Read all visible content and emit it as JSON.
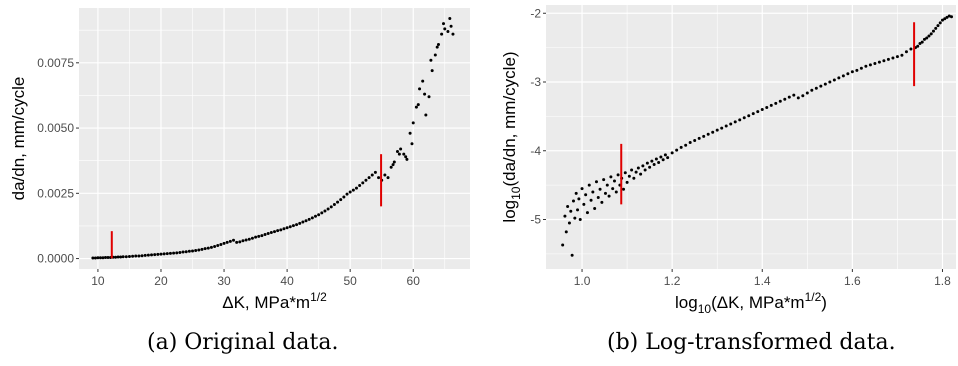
{
  "chart_data": [
    {
      "type": "scatter",
      "xlabel": "ΔK, MPa*m^1/2",
      "ylabel": "da/dn, mm/cycle",
      "xlim": [
        7,
        69
      ],
      "ylim": [
        -0.0004,
        0.0096
      ],
      "x_ticks": [
        10,
        20,
        30,
        40,
        50,
        60
      ],
      "y_ticks": [
        0,
        0.0025,
        0.005,
        0.0075
      ],
      "x_tick_labels": [
        "10",
        "20",
        "30",
        "40",
        "50",
        "60"
      ],
      "y_tick_labels": [
        "0.0000",
        "0.0025",
        "0.0050",
        "0.0075"
      ],
      "background": "#ebebeb",
      "grid": true,
      "point_color": "#000000",
      "marker_color": "#e00000",
      "vertical_markers": [
        {
          "x": 12.2,
          "y": [
            1e-05,
            0.00105
          ]
        },
        {
          "x": 54.9,
          "y": [
            0.002,
            0.004
          ]
        }
      ],
      "points": [
        [
          9.2,
          2e-05
        ],
        [
          9.6,
          2e-05
        ],
        [
          10.0,
          3e-05
        ],
        [
          10.4,
          3e-05
        ],
        [
          10.8,
          3e-05
        ],
        [
          11.2,
          4e-05
        ],
        [
          11.6,
          4e-05
        ],
        [
          12.0,
          4e-05
        ],
        [
          12.4,
          5e-05
        ],
        [
          12.8,
          5e-05
        ],
        [
          13.2,
          6e-05
        ],
        [
          13.6,
          6e-05
        ],
        [
          14.0,
          7e-05
        ],
        [
          14.5,
          7e-05
        ],
        [
          15.0,
          8e-05
        ],
        [
          15.5,
          9e-05
        ],
        [
          16.0,
          0.0001
        ],
        [
          16.5,
          0.0001
        ],
        [
          17.0,
          0.00011
        ],
        [
          17.5,
          0.00012
        ],
        [
          18.0,
          0.00013
        ],
        [
          18.5,
          0.00014
        ],
        [
          19.0,
          0.00015
        ],
        [
          19.5,
          0.00016
        ],
        [
          20.0,
          0.00017
        ],
        [
          20.5,
          0.00018
        ],
        [
          21.0,
          0.00019
        ],
        [
          21.5,
          0.0002
        ],
        [
          22.0,
          0.00021
        ],
        [
          22.5,
          0.00022
        ],
        [
          23.0,
          0.00023
        ],
        [
          23.5,
          0.00025
        ],
        [
          24.0,
          0.00026
        ],
        [
          24.5,
          0.00028
        ],
        [
          25.0,
          0.00029
        ],
        [
          25.5,
          0.00031
        ],
        [
          26.0,
          0.00033
        ],
        [
          26.5,
          0.00035
        ],
        [
          27.0,
          0.00038
        ],
        [
          27.5,
          0.0004
        ],
        [
          28.0,
          0.00043
        ],
        [
          28.5,
          0.00046
        ],
        [
          29.0,
          0.0005
        ],
        [
          29.5,
          0.00054
        ],
        [
          30.0,
          0.00058
        ],
        [
          30.5,
          0.00062
        ],
        [
          31.0,
          0.00066
        ],
        [
          31.5,
          0.0007
        ],
        [
          32.0,
          0.00062
        ],
        [
          32.5,
          0.00064
        ],
        [
          33.0,
          0.00068
        ],
        [
          33.5,
          0.00071
        ],
        [
          34.0,
          0.00074
        ],
        [
          34.5,
          0.00078
        ],
        [
          35.0,
          0.00082
        ],
        [
          35.5,
          0.00085
        ],
        [
          36.0,
          0.00088
        ],
        [
          36.5,
          0.00092
        ],
        [
          37.0,
          0.00096
        ],
        [
          37.5,
          0.001
        ],
        [
          38.0,
          0.00103
        ],
        [
          38.5,
          0.00107
        ],
        [
          39.0,
          0.0011
        ],
        [
          39.5,
          0.00114
        ],
        [
          40.0,
          0.00118
        ],
        [
          40.5,
          0.00122
        ],
        [
          41.0,
          0.00126
        ],
        [
          41.5,
          0.0013
        ],
        [
          42.0,
          0.00135
        ],
        [
          42.5,
          0.0014
        ],
        [
          43.0,
          0.00145
        ],
        [
          43.5,
          0.0015
        ],
        [
          44.0,
          0.00156
        ],
        [
          44.5,
          0.00162
        ],
        [
          45.0,
          0.00168
        ],
        [
          45.5,
          0.00175
        ],
        [
          46.0,
          0.00182
        ],
        [
          46.5,
          0.0019
        ],
        [
          47.0,
          0.00198
        ],
        [
          47.5,
          0.00207
        ],
        [
          48.0,
          0.00216
        ],
        [
          48.5,
          0.00226
        ],
        [
          49.0,
          0.00236
        ],
        [
          49.5,
          0.00247
        ],
        [
          50.0,
          0.00255
        ],
        [
          50.5,
          0.00262
        ],
        [
          51.0,
          0.0027
        ],
        [
          51.5,
          0.0028
        ],
        [
          52.0,
          0.0029
        ],
        [
          52.5,
          0.003
        ],
        [
          53.0,
          0.0031
        ],
        [
          53.5,
          0.0032
        ],
        [
          54.0,
          0.0033
        ],
        [
          54.5,
          0.0031
        ],
        [
          55.0,
          0.003
        ],
        [
          55.5,
          0.0032
        ],
        [
          56.0,
          0.0031
        ],
        [
          56.5,
          0.0035
        ],
        [
          57.0,
          0.0037
        ],
        [
          57.5,
          0.0041
        ],
        [
          58.0,
          0.0042
        ],
        [
          58.5,
          0.004
        ],
        [
          59.0,
          0.0038
        ],
        [
          59.5,
          0.0048
        ],
        [
          60.0,
          0.0052
        ],
        [
          60.5,
          0.0058
        ],
        [
          61.0,
          0.0065
        ],
        [
          61.5,
          0.0068
        ],
        [
          62.0,
          0.0055
        ],
        [
          62.5,
          0.0062
        ],
        [
          63.0,
          0.0072
        ],
        [
          63.5,
          0.0078
        ],
        [
          64.0,
          0.0082
        ],
        [
          64.5,
          0.0086
        ],
        [
          65.0,
          0.0088
        ],
        [
          65.5,
          0.0087
        ],
        [
          66.0,
          0.0089
        ],
        [
          66.3,
          0.0086
        ],
        [
          65.8,
          0.0092
        ],
        [
          64.8,
          0.009
        ],
        [
          63.8,
          0.0081
        ],
        [
          62.8,
          0.0076
        ],
        [
          61.8,
          0.0063
        ],
        [
          60.8,
          0.0059
        ],
        [
          59.8,
          0.0044
        ],
        [
          58.8,
          0.0039
        ],
        [
          57.8,
          0.004
        ],
        [
          56.8,
          0.0036
        ]
      ]
    },
    {
      "type": "scatter",
      "xlabel": "log10(ΔK, MPa*m^1/2)",
      "ylabel": "log10(da/dn, mm/cycle)",
      "xlim": [
        0.92,
        1.83
      ],
      "ylim": [
        -5.72,
        -1.88
      ],
      "x_ticks": [
        1.0,
        1.2,
        1.4,
        1.6,
        1.8
      ],
      "y_ticks": [
        -5,
        -4,
        -3,
        -2
      ],
      "x_tick_labels": [
        "1.0",
        "1.2",
        "1.4",
        "1.6",
        "1.8"
      ],
      "y_tick_labels": [
        "-5",
        "-4",
        "-3",
        "-2"
      ],
      "background": "#ebebeb",
      "grid": true,
      "point_color": "#000000",
      "marker_color": "#e00000",
      "vertical_markers": [
        {
          "x": 1.087,
          "y": [
            -4.78,
            -3.9
          ]
        },
        {
          "x": 1.737,
          "y": [
            -3.06,
            -2.13
          ]
        }
      ],
      "points": [
        [
          0.957,
          -5.37
        ],
        [
          0.962,
          -4.95
        ],
        [
          0.965,
          -5.18
        ],
        [
          0.968,
          -4.81
        ],
        [
          0.972,
          -5.05
        ],
        [
          0.975,
          -4.88
        ],
        [
          0.978,
          -5.52
        ],
        [
          0.981,
          -4.73
        ],
        [
          0.984,
          -4.98
        ],
        [
          0.987,
          -4.62
        ],
        [
          0.99,
          -4.86
        ],
        [
          0.993,
          -4.7
        ],
        [
          0.996,
          -5.0
        ],
        [
          1.0,
          -4.55
        ],
        [
          1.004,
          -4.78
        ],
        [
          1.008,
          -4.64
        ],
        [
          1.012,
          -4.9
        ],
        [
          1.016,
          -4.5
        ],
        [
          1.02,
          -4.72
        ],
        [
          1.024,
          -4.6
        ],
        [
          1.028,
          -4.84
        ],
        [
          1.032,
          -4.45
        ],
        [
          1.036,
          -4.68
        ],
        [
          1.04,
          -4.56
        ],
        [
          1.044,
          -4.75
        ],
        [
          1.048,
          -4.42
        ],
        [
          1.052,
          -4.62
        ],
        [
          1.056,
          -4.5
        ],
        [
          1.06,
          -4.66
        ],
        [
          1.064,
          -4.38
        ],
        [
          1.068,
          -4.55
        ],
        [
          1.072,
          -4.44
        ],
        [
          1.076,
          -4.6
        ],
        [
          1.08,
          -4.35
        ],
        [
          1.084,
          -4.5
        ],
        [
          1.088,
          -4.4
        ],
        [
          1.092,
          -4.56
        ],
        [
          1.096,
          -4.32
        ],
        [
          1.1,
          -4.46
        ],
        [
          1.105,
          -4.37
        ],
        [
          1.11,
          -4.28
        ],
        [
          1.115,
          -4.4
        ],
        [
          1.12,
          -4.31
        ],
        [
          1.125,
          -4.25
        ],
        [
          1.13,
          -4.34
        ],
        [
          1.135,
          -4.22
        ],
        [
          1.14,
          -4.28
        ],
        [
          1.145,
          -4.18
        ],
        [
          1.15,
          -4.24
        ],
        [
          1.155,
          -4.15
        ],
        [
          1.16,
          -4.2
        ],
        [
          1.165,
          -4.12
        ],
        [
          1.17,
          -4.17
        ],
        [
          1.175,
          -4.09
        ],
        [
          1.18,
          -4.13
        ],
        [
          1.185,
          -4.06
        ],
        [
          1.19,
          -4.1
        ],
        [
          1.2,
          -4.03
        ],
        [
          1.21,
          -3.99
        ],
        [
          1.22,
          -3.95
        ],
        [
          1.23,
          -3.92
        ],
        [
          1.24,
          -3.88
        ],
        [
          1.25,
          -3.85
        ],
        [
          1.26,
          -3.82
        ],
        [
          1.27,
          -3.79
        ],
        [
          1.28,
          -3.76
        ],
        [
          1.29,
          -3.73
        ],
        [
          1.3,
          -3.7
        ],
        [
          1.31,
          -3.67
        ],
        [
          1.32,
          -3.64
        ],
        [
          1.33,
          -3.61
        ],
        [
          1.34,
          -3.58
        ],
        [
          1.35,
          -3.55
        ],
        [
          1.36,
          -3.52
        ],
        [
          1.37,
          -3.49
        ],
        [
          1.38,
          -3.46
        ],
        [
          1.39,
          -3.43
        ],
        [
          1.4,
          -3.4
        ],
        [
          1.41,
          -3.37
        ],
        [
          1.42,
          -3.34
        ],
        [
          1.43,
          -3.31
        ],
        [
          1.44,
          -3.28
        ],
        [
          1.45,
          -3.25
        ],
        [
          1.46,
          -3.22
        ],
        [
          1.47,
          -3.19
        ],
        [
          1.48,
          -3.23
        ],
        [
          1.49,
          -3.2
        ],
        [
          1.5,
          -3.16
        ],
        [
          1.51,
          -3.12
        ],
        [
          1.52,
          -3.09
        ],
        [
          1.53,
          -3.06
        ],
        [
          1.54,
          -3.03
        ],
        [
          1.55,
          -3.0
        ],
        [
          1.56,
          -2.97
        ],
        [
          1.57,
          -2.94
        ],
        [
          1.58,
          -2.91
        ],
        [
          1.59,
          -2.88
        ],
        [
          1.6,
          -2.85
        ],
        [
          1.61,
          -2.83
        ],
        [
          1.62,
          -2.8
        ],
        [
          1.63,
          -2.77
        ],
        [
          1.64,
          -2.75
        ],
        [
          1.65,
          -2.73
        ],
        [
          1.66,
          -2.71
        ],
        [
          1.67,
          -2.69
        ],
        [
          1.68,
          -2.67
        ],
        [
          1.69,
          -2.65
        ],
        [
          1.7,
          -2.63
        ],
        [
          1.71,
          -2.61
        ],
        [
          1.72,
          -2.56
        ],
        [
          1.73,
          -2.52
        ],
        [
          1.74,
          -2.5
        ],
        [
          1.75,
          -2.44
        ],
        [
          1.76,
          -2.38
        ],
        [
          1.77,
          -2.33
        ],
        [
          1.78,
          -2.26
        ],
        [
          1.79,
          -2.18
        ],
        [
          1.8,
          -2.1
        ],
        [
          1.81,
          -2.06
        ],
        [
          1.82,
          -2.05
        ],
        [
          1.815,
          -2.04
        ],
        [
          1.805,
          -2.08
        ],
        [
          1.795,
          -2.14
        ],
        [
          1.785,
          -2.22
        ],
        [
          1.775,
          -2.3
        ],
        [
          1.765,
          -2.36
        ],
        [
          1.755,
          -2.42
        ],
        [
          1.745,
          -2.48
        ]
      ]
    }
  ],
  "captions": [
    "(a) Original data.",
    "(b) Log-transformed data."
  ]
}
